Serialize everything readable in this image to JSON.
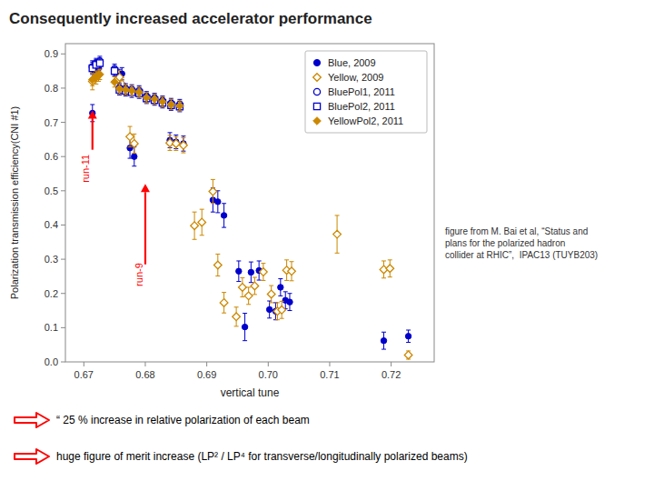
{
  "chart_data": {
    "type": "scatter",
    "title": "Consequently increased accelerator performance",
    "x_label": "vertical tune",
    "y_label": "Polarization transmission efficiency(CNI #1)",
    "xlim": [
      0.667,
      0.727
    ],
    "ylim": [
      0.0,
      0.93
    ],
    "xticks": [
      0.67,
      0.68,
      0.69,
      {
        "value": 0.7,
        "label": "0.70"
      },
      0.71,
      0.72
    ],
    "yticks": [
      {
        "value": 0.0,
        "label": "0.0"
      },
      0.1,
      0.2,
      0.3,
      0.4,
      0.5,
      0.6,
      0.7,
      0.8,
      0.9
    ],
    "grid": false,
    "legend": "upper right",
    "series": [
      {
        "name": "Blue, 2009",
        "color": "#0000cc",
        "marker": "circle",
        "x": [
          0.6714,
          0.672,
          0.6724,
          0.6758,
          0.6762,
          0.6775,
          0.6782,
          0.684,
          0.685,
          0.6862,
          0.691,
          0.6918,
          0.6928,
          0.6952,
          0.6962,
          0.6972,
          0.6985,
          0.7002,
          0.7012,
          0.702,
          0.7028,
          0.7035,
          0.7188,
          0.7228
        ],
        "values": [
          0.727,
          0.85,
          0.858,
          0.835,
          0.842,
          0.625,
          0.6,
          0.648,
          0.643,
          0.638,
          0.473,
          0.468,
          0.428,
          0.265,
          0.102,
          0.262,
          0.267,
          0.153,
          0.148,
          0.218,
          0.18,
          0.175,
          0.062,
          0.075
        ],
        "errors": [
          0.025,
          0.02,
          0.018,
          0.02,
          0.018,
          0.03,
          0.028,
          0.022,
          0.02,
          0.022,
          0.035,
          0.032,
          0.035,
          0.03,
          0.04,
          0.03,
          0.028,
          0.025,
          0.025,
          0.025,
          0.025,
          0.025,
          0.025,
          0.018
        ]
      },
      {
        "name": "Yellow, 2009",
        "color": "#cc8800",
        "marker": "diamond-open",
        "x": [
          0.6714,
          0.672,
          0.6724,
          0.6758,
          0.6762,
          0.6775,
          0.6782,
          0.684,
          0.685,
          0.6862,
          0.688,
          0.6892,
          0.691,
          0.6918,
          0.6928,
          0.6948,
          0.6958,
          0.6968,
          0.6978,
          0.6992,
          0.7005,
          0.7015,
          0.7022,
          0.703,
          0.7038,
          0.7112,
          0.7188,
          0.7198,
          0.7228
        ],
        "values": [
          0.82,
          0.832,
          0.838,
          0.832,
          0.812,
          0.658,
          0.638,
          0.64,
          0.638,
          0.633,
          0.398,
          0.408,
          0.498,
          0.283,
          0.173,
          0.132,
          0.218,
          0.193,
          0.222,
          0.263,
          0.198,
          0.148,
          0.152,
          0.268,
          0.265,
          0.373,
          0.27,
          0.273,
          0.02
        ],
        "errors": [
          0.025,
          0.02,
          0.018,
          0.02,
          0.018,
          0.03,
          0.028,
          0.022,
          0.02,
          0.022,
          0.04,
          0.038,
          0.035,
          0.032,
          0.03,
          0.028,
          0.028,
          0.025,
          0.025,
          0.025,
          0.025,
          0.025,
          0.025,
          0.03,
          0.028,
          0.055,
          0.025,
          0.025,
          0.012
        ]
      },
      {
        "name": "BluePol1, 2011",
        "color": "#0000cc",
        "marker": "circle-open",
        "x": [
          0.6714,
          0.672,
          0.6726,
          0.675,
          0.6758,
          0.6768,
          0.6778,
          0.679,
          0.6802,
          0.6815,
          0.6828,
          0.6842,
          0.6856
        ],
        "values": [
          0.862,
          0.872,
          0.878,
          0.855,
          0.8,
          0.798,
          0.795,
          0.792,
          0.775,
          0.77,
          0.762,
          0.755,
          0.752
        ],
        "errors": [
          0.018,
          0.015,
          0.015,
          0.015,
          0.015,
          0.015,
          0.015,
          0.015,
          0.015,
          0.015,
          0.015,
          0.015,
          0.015
        ]
      },
      {
        "name": "BluePol2, 2011",
        "color": "#0000cc",
        "marker": "square-open",
        "x": [
          0.6714,
          0.672,
          0.6726,
          0.675,
          0.6758,
          0.6768,
          0.6778,
          0.679,
          0.6802,
          0.6815,
          0.6828,
          0.6842,
          0.6856
        ],
        "values": [
          0.858,
          0.868,
          0.873,
          0.85,
          0.795,
          0.792,
          0.788,
          0.785,
          0.77,
          0.765,
          0.757,
          0.75,
          0.746
        ],
        "errors": [
          0.018,
          0.015,
          0.015,
          0.015,
          0.015,
          0.015,
          0.015,
          0.015,
          0.015,
          0.015,
          0.015,
          0.015,
          0.015
        ]
      },
      {
        "name": "YellowPol2, 2011",
        "color": "#cc8800",
        "marker": "diamond",
        "x": [
          0.6714,
          0.672,
          0.6726,
          0.675,
          0.6758,
          0.6768,
          0.6778,
          0.679,
          0.6802,
          0.6815,
          0.6828,
          0.6842,
          0.6856
        ],
        "values": [
          0.825,
          0.835,
          0.84,
          0.818,
          0.798,
          0.795,
          0.792,
          0.788,
          0.772,
          0.768,
          0.76,
          0.752,
          0.748
        ],
        "errors": [
          0.018,
          0.015,
          0.015,
          0.015,
          0.015,
          0.015,
          0.015,
          0.015,
          0.015,
          0.015,
          0.015,
          0.015,
          0.015
        ]
      }
    ],
    "arrows": [
      {
        "x": 0.6714,
        "y_from": 0.62,
        "y_to": 0.735,
        "color": "red"
      },
      {
        "x": 0.68,
        "y_from": 0.285,
        "y_to": 0.52,
        "color": "red"
      }
    ],
    "annotations": [
      {
        "text": "run-11",
        "x": 0.6703,
        "y": 0.565,
        "color": "red"
      },
      {
        "text": "run-9",
        "x": 0.6789,
        "y": 0.255,
        "color": "red"
      }
    ],
    "caption": "figure from M. Bai et al, “Status and\nplans for the polarized hadron\ncollider at RHIC”,  IPAC13 (TUYB203)",
    "notes": [
      "“ 25 % increase in relative polarization of each beam",
      "huge figure of merit increase (LP² / LP⁴ for transverse/longitudinally polarized beams)"
    ]
  }
}
